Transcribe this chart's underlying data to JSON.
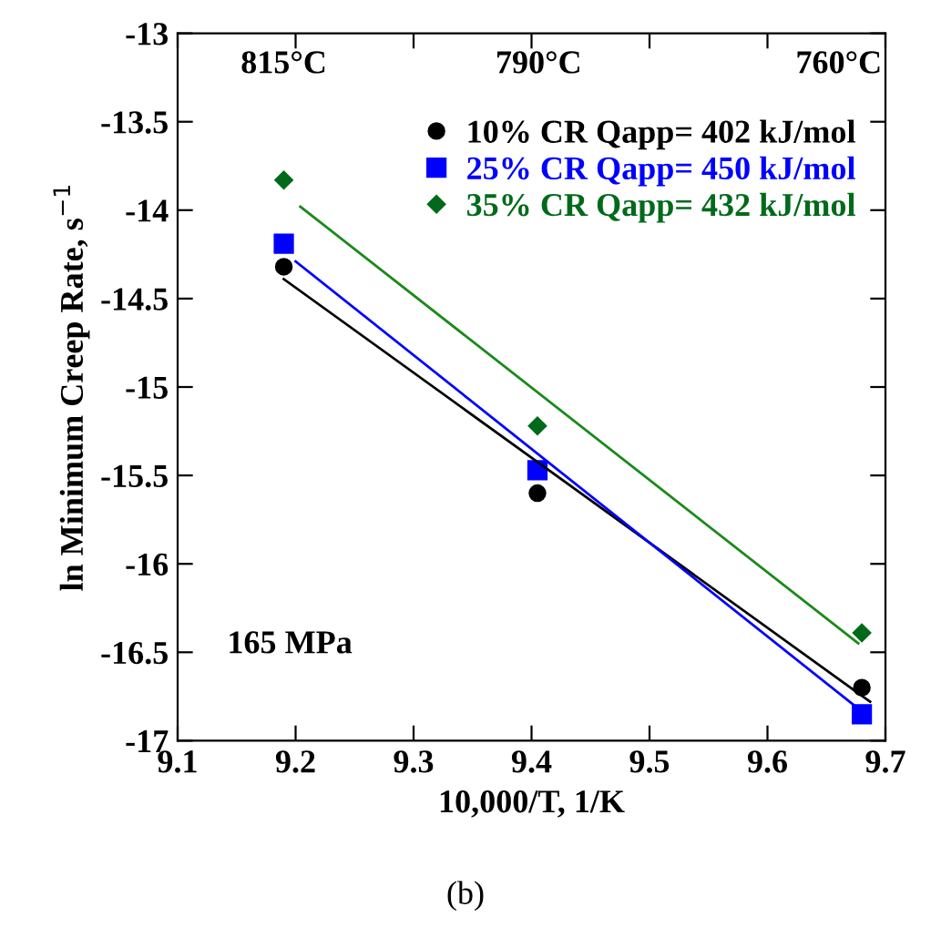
{
  "chart_data": {
    "type": "scatter",
    "xlabel": "10,000/T, 1/K",
    "ylabel": "ln Minimum Creep Rate, s$^{−1}$",
    "xlim": [
      9.1,
      9.7
    ],
    "xticks": [
      9.1,
      9.2,
      9.3,
      9.4,
      9.5,
      9.6,
      9.7
    ],
    "ylim": [
      -17,
      -13
    ],
    "yticks": [
      -17,
      -16.5,
      -16,
      -15.5,
      -15,
      -14.5,
      -14,
      -13.5,
      -13
    ],
    "series": [
      {
        "name": "10% CR Qapp= 402 kJ/mol",
        "color": "#000000",
        "marker": "circle",
        "x": [
          9.19,
          9.405,
          9.68
        ],
        "values": [
          -14.32,
          -15.6,
          -16.7
        ]
      },
      {
        "name": "25% CR Qapp= 450 kJ/mol",
        "color": "#0000ff",
        "marker": "square",
        "x": [
          9.19,
          9.405,
          9.68
        ],
        "values": [
          -14.19,
          -15.47,
          -16.85
        ]
      },
      {
        "name": "35% CR Qapp= 432 kJ/mol",
        "color": "#006a1a",
        "marker": "diamond",
        "x": [
          9.19,
          9.405,
          9.68
        ],
        "values": [
          -13.83,
          -15.22,
          -16.39
        ]
      },
      {
        "type": "line",
        "color": "#000000",
        "x": [
          9.19,
          9.687
        ],
        "values": [
          -14.39,
          -16.78
        ]
      },
      {
        "type": "line",
        "color": "#0000ff",
        "x": [
          9.2,
          9.681
        ],
        "values": [
          -14.29,
          -16.84
        ]
      },
      {
        "type": "line",
        "color": "#1a8a1a",
        "x": [
          9.204,
          9.677
        ],
        "values": [
          -13.98,
          -16.45
        ]
      }
    ],
    "legend": "top right",
    "grid": false,
    "annotations": [
      "815°C",
      "790°C",
      "760°C",
      "165 MPa",
      "(b)"
    ]
  }
}
